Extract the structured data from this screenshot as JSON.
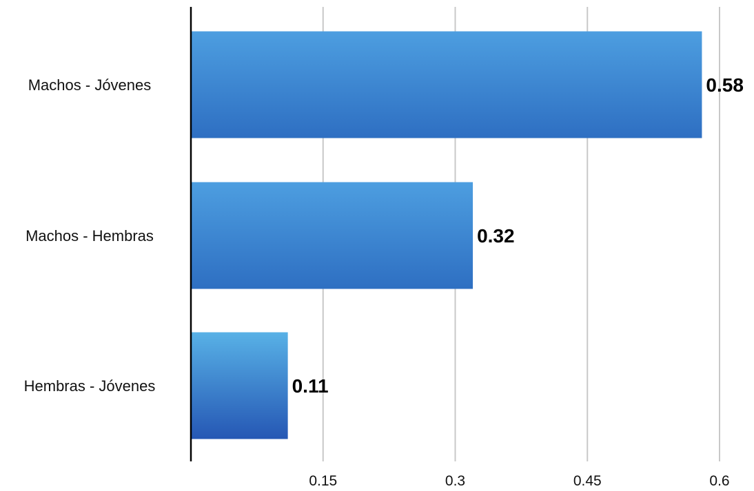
{
  "chart_data": {
    "type": "bar",
    "orientation": "horizontal",
    "categories": [
      "Machos - Jóvenes",
      "Machos - Hembras",
      "Hembras - Jóvenes"
    ],
    "values": [
      0.58,
      0.32,
      0.11
    ],
    "data_labels": [
      "0.58",
      "0.32",
      "0.11"
    ],
    "xlim": [
      0,
      0.6
    ],
    "x_ticks": [
      0.15,
      0.3,
      0.45,
      0.6
    ],
    "x_tick_labels": [
      "0.15",
      "0.3",
      "0.45",
      "0.6"
    ],
    "title": "",
    "xlabel": "",
    "ylabel": "",
    "grid": "vertical",
    "legend": "none",
    "colors": {
      "bar_top": "#4d9ee0",
      "bar_bottom": "#2e6fc2",
      "bar_small_top": "#58b1e6",
      "bar_small_bottom": "#2557b4",
      "grid": "#c8c8c8",
      "axis": "#000000"
    }
  }
}
